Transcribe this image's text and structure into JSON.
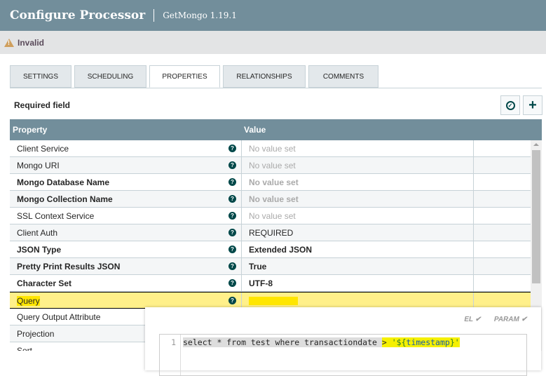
{
  "header": {
    "title": "Configure Processor",
    "subtitle": "GetMongo 1.19.1"
  },
  "status": {
    "icon": "warning-icon",
    "text": "Invalid"
  },
  "tabs": [
    {
      "label": "SETTINGS"
    },
    {
      "label": "SCHEDULING"
    },
    {
      "label": "PROPERTIES",
      "active": true
    },
    {
      "label": "RELATIONSHIPS"
    },
    {
      "label": "COMMENTS"
    }
  ],
  "required_label": "Required field",
  "table": {
    "headers": {
      "property": "Property",
      "value": "Value"
    },
    "rows": [
      {
        "property": "Client Service",
        "value": "No value set"
      },
      {
        "property": "Mongo URI",
        "value": "No value set"
      },
      {
        "property": "Mongo Database Name",
        "value": "No value set"
      },
      {
        "property": "Mongo Collection Name",
        "value": "No value set"
      },
      {
        "property": "SSL Context Service",
        "value": "No value set"
      },
      {
        "property": "Client Auth",
        "value": "REQUIRED"
      },
      {
        "property": "JSON Type",
        "value": "Extended JSON"
      },
      {
        "property": "Pretty Print Results JSON",
        "value": "True"
      },
      {
        "property": "Character Set",
        "value": "UTF-8"
      },
      {
        "property": "Query",
        "value": ""
      },
      {
        "property": "Query Output Attribute",
        "value": ""
      },
      {
        "property": "Projection",
        "value": ""
      },
      {
        "property": "Sort",
        "value": ""
      }
    ]
  },
  "editor": {
    "el_label": "EL ✔",
    "param_label": "PARAM ✔",
    "line_number": "1",
    "code_prefix": "select * from test where transactiondate ",
    "code_op": "> ",
    "code_q1": "'${",
    "code_var": "timestamp",
    "code_q2": "}'"
  }
}
